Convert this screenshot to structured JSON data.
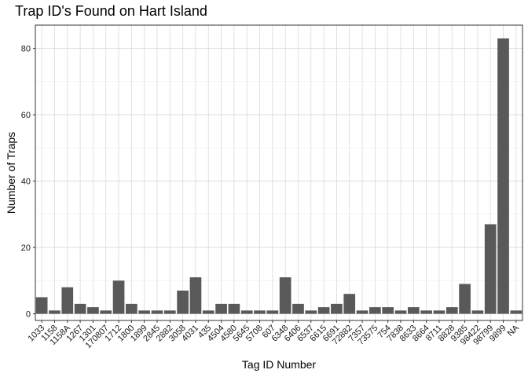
{
  "chart_data": {
    "type": "bar",
    "title": "Trap ID's Found on Hart Island",
    "xlabel": "Tag ID Number",
    "ylabel": "Number of Traps",
    "ylim": [
      -2,
      87
    ],
    "yticks": [
      0,
      20,
      40,
      60,
      80
    ],
    "grid": true,
    "bar_color": "#595959",
    "categories": [
      "1033",
      "1158",
      "1158A",
      "1267",
      "1301",
      "170807",
      "1712",
      "1800",
      "1899",
      "2845",
      "2882",
      "3058",
      "4031",
      "435",
      "4504",
      "4580",
      "5645",
      "5708",
      "607",
      "6348",
      "6406",
      "6537",
      "6615",
      "6691",
      "72882",
      "7357",
      "73575",
      "754",
      "7838",
      "8633",
      "8664",
      "8711",
      "8828",
      "9385",
      "98422",
      "98799",
      "9899",
      "NA"
    ],
    "values": [
      5,
      1,
      8,
      3,
      2,
      1,
      10,
      3,
      1,
      1,
      1,
      7,
      11,
      1,
      3,
      3,
      1,
      1,
      1,
      11,
      3,
      1,
      2,
      3,
      6,
      1,
      2,
      2,
      1,
      2,
      1,
      1,
      2,
      9,
      1,
      27,
      83,
      1
    ]
  }
}
